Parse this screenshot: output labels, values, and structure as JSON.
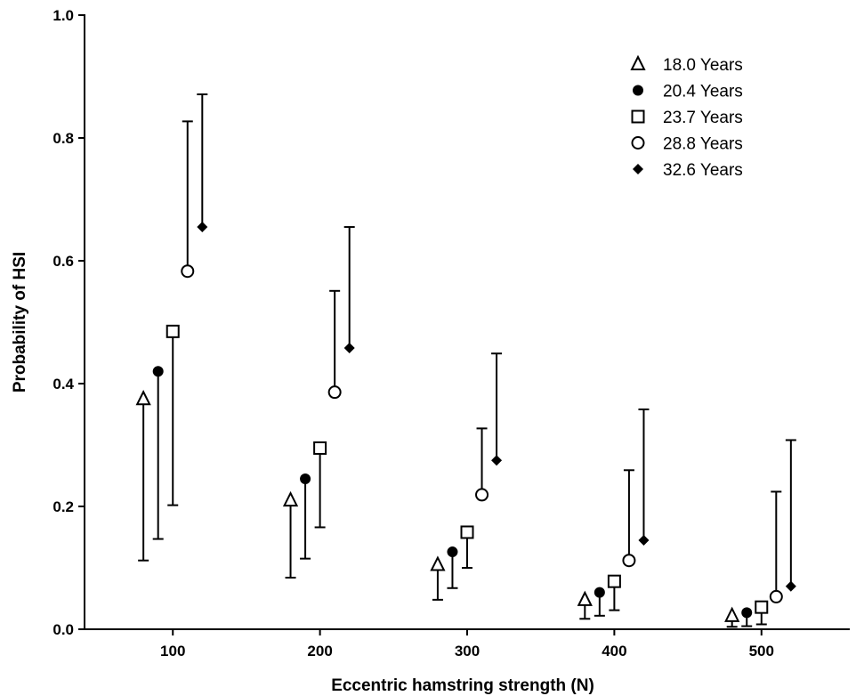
{
  "chart_data": {
    "type": "scatter",
    "title": "",
    "xlabel": "Eccentric hamstring strength (N)",
    "ylabel": "Probability of HSI",
    "xlim": [
      40,
      560
    ],
    "ylim": [
      0,
      1.0
    ],
    "x_ticks": [
      100,
      200,
      300,
      400,
      500
    ],
    "y_ticks": [
      0.0,
      0.2,
      0.4,
      0.6,
      0.8,
      1.0
    ],
    "y_tick_labels": [
      "0.0",
      "0.2",
      "0.4",
      "0.6",
      "0.8",
      "1.0"
    ],
    "x_tick_labels": [
      "100",
      "200",
      "300",
      "400",
      "500"
    ],
    "legend_position": "top-right",
    "grid": false,
    "series": [
      {
        "name": "18.0 Years",
        "marker": "triangle-open",
        "x": [
          100,
          200,
          300,
          400,
          500
        ],
        "y": [
          0.375,
          0.21,
          0.105,
          0.048,
          0.022
        ],
        "error_lower": [
          0.112,
          0.084,
          0.048,
          0.017,
          0.004
        ],
        "error_upper": null
      },
      {
        "name": "20.4 Years",
        "marker": "circle-filled",
        "x": [
          100,
          200,
          300,
          400,
          500
        ],
        "y": [
          0.42,
          0.245,
          0.126,
          0.06,
          0.027
        ],
        "error_lower": [
          0.147,
          0.115,
          0.067,
          0.022,
          0.005
        ],
        "error_upper": null
      },
      {
        "name": "23.7 Years",
        "marker": "square-open",
        "x": [
          100,
          200,
          300,
          400,
          500
        ],
        "y": [
          0.485,
          0.295,
          0.158,
          0.078,
          0.036
        ],
        "error_lower": [
          0.202,
          0.166,
          0.1,
          0.031,
          0.008
        ],
        "error_upper": null
      },
      {
        "name": "28.8 Years",
        "marker": "circle-open",
        "x": [
          100,
          200,
          300,
          400,
          500
        ],
        "y": [
          0.583,
          0.386,
          0.219,
          0.112,
          0.053
        ],
        "error_lower": null,
        "error_upper": [
          0.827,
          0.551,
          0.327,
          0.259,
          0.224
        ]
      },
      {
        "name": "32.6 Years",
        "marker": "diamond-filled",
        "x": [
          100,
          200,
          300,
          400,
          500
        ],
        "y": [
          0.655,
          0.458,
          0.275,
          0.145,
          0.07
        ],
        "error_lower": null,
        "error_upper": [
          0.871,
          0.655,
          0.449,
          0.358,
          0.308
        ]
      }
    ]
  }
}
